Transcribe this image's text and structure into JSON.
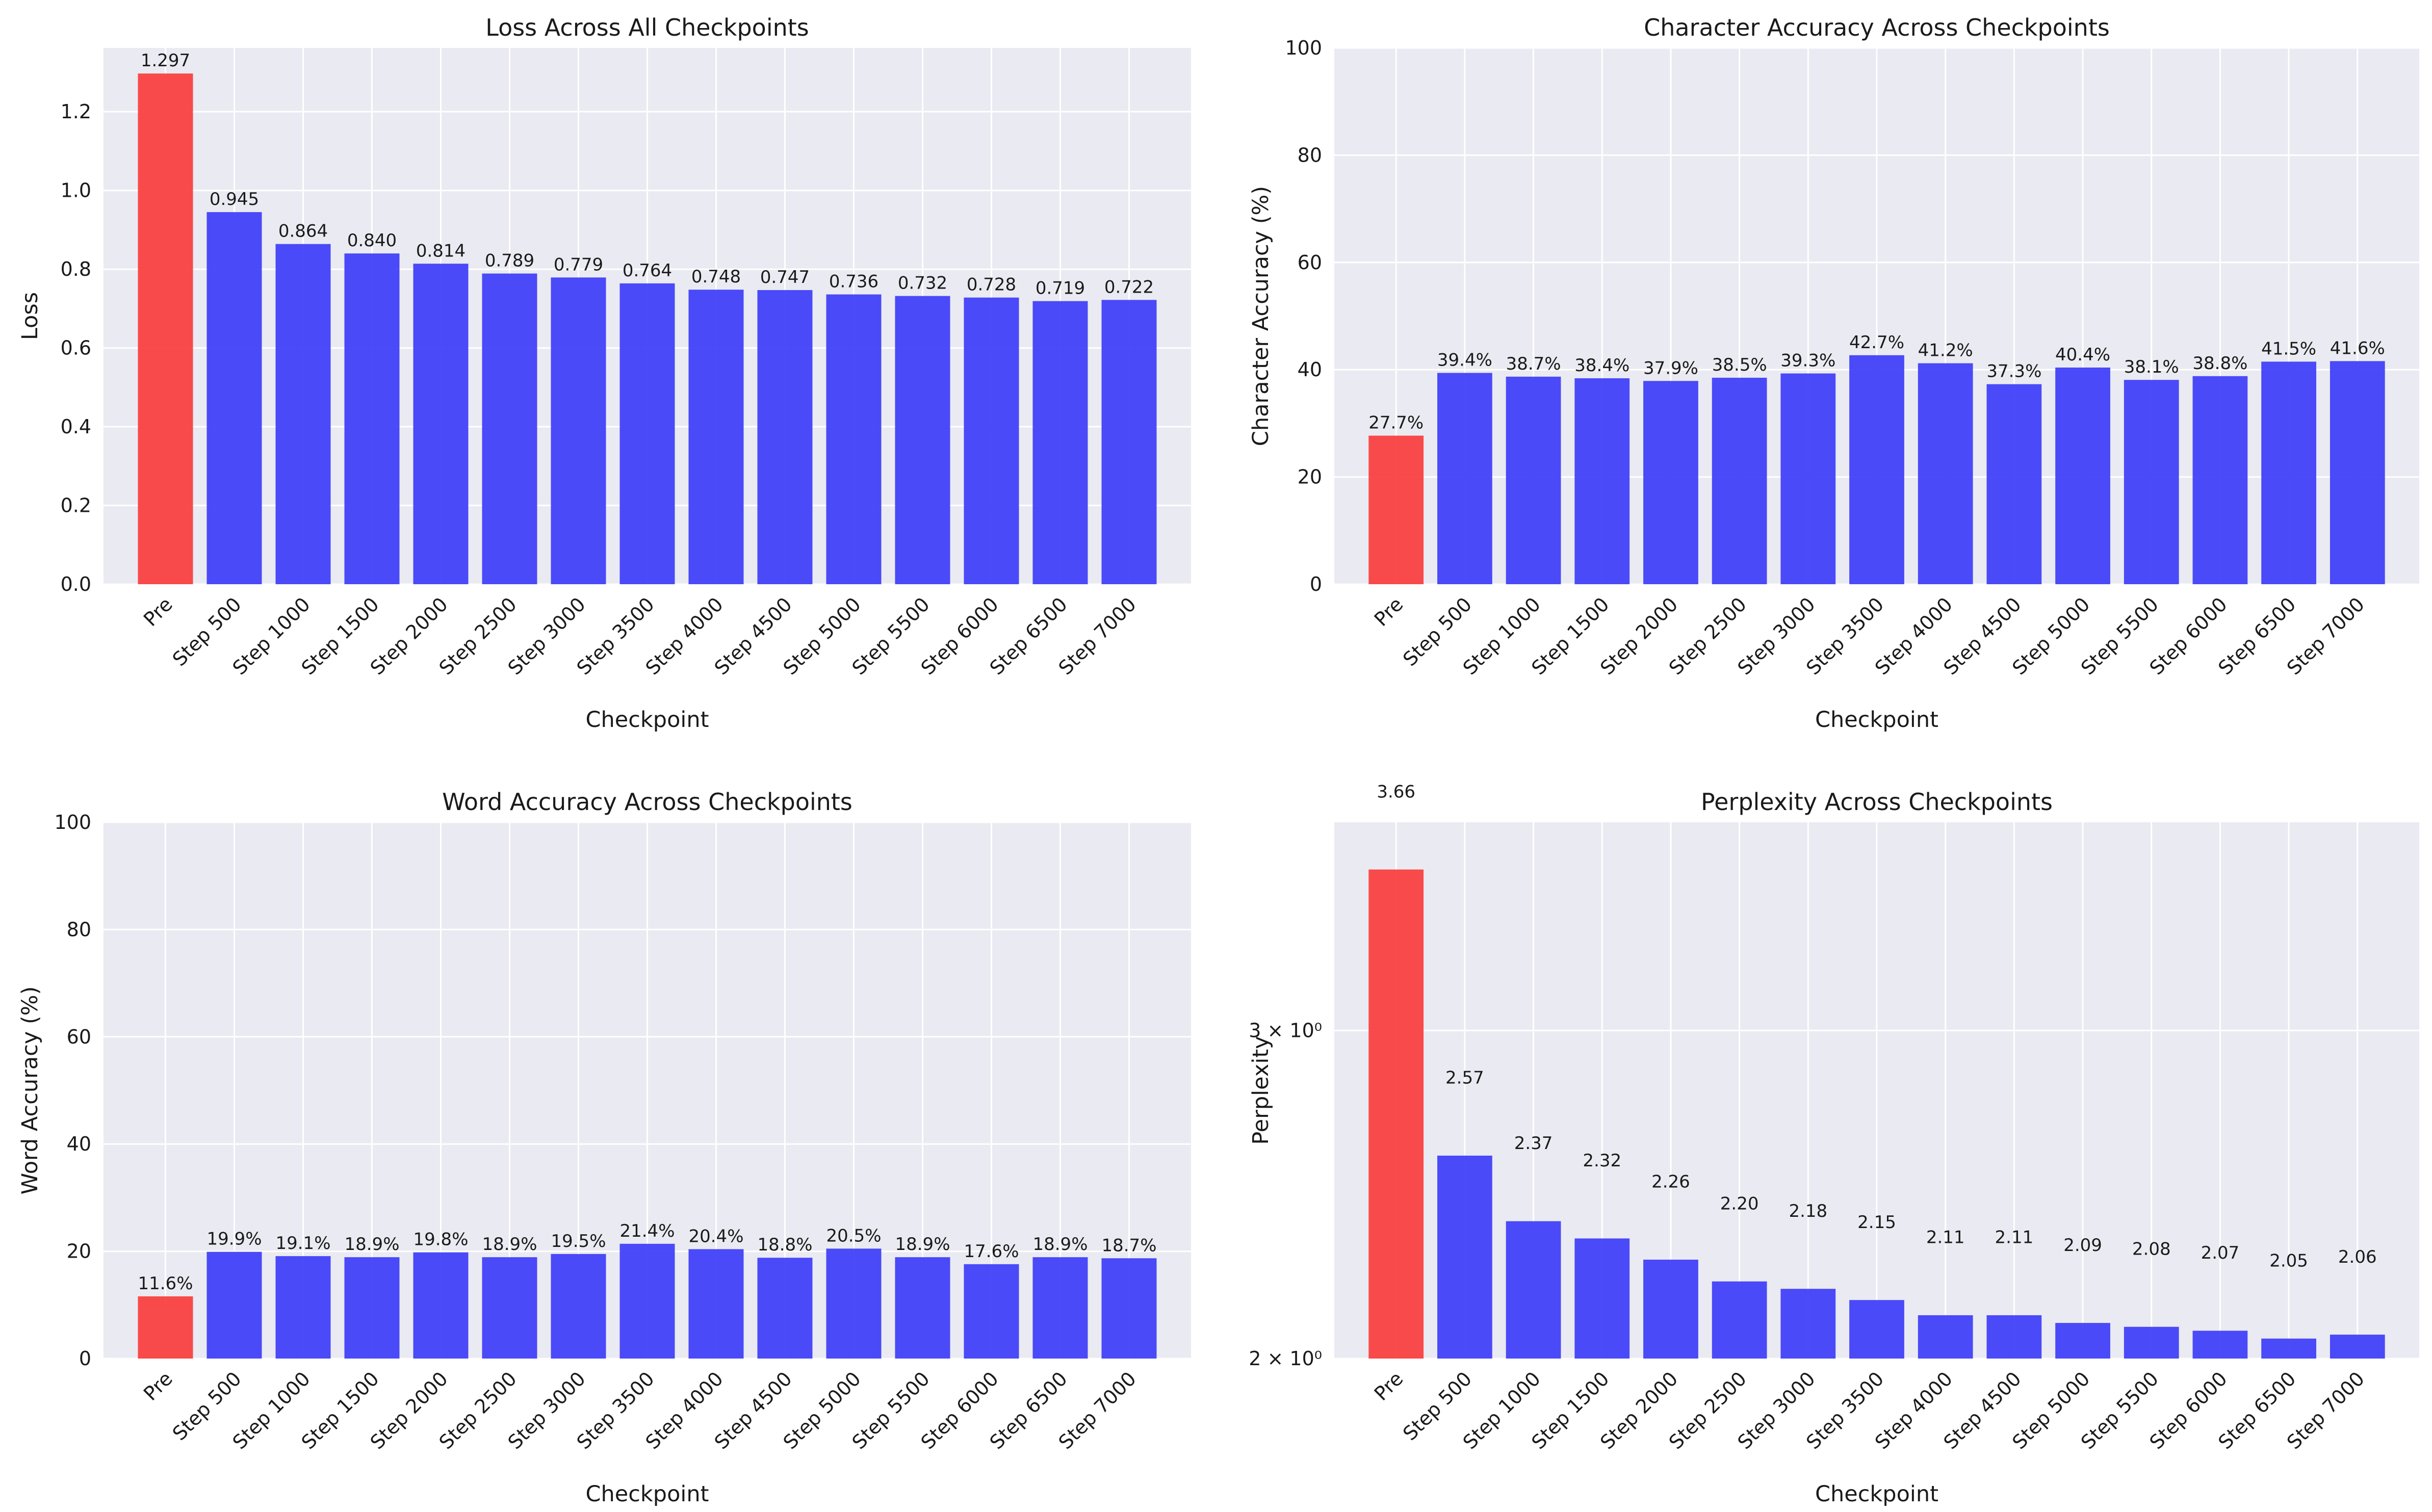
{
  "colors": {
    "pre": "#f83c3c",
    "step": "#3c3cf8",
    "axes_bg": "#eaeaf2",
    "grid": "#ffffff"
  },
  "chart_data": [
    {
      "type": "bar",
      "title": "Loss Across All Checkpoints",
      "xlabel": "Checkpoint",
      "ylabel": "Loss",
      "categories": [
        "Pre",
        "Step 500",
        "Step 1000",
        "Step 1500",
        "Step 2000",
        "Step 2500",
        "Step 3000",
        "Step 3500",
        "Step 4000",
        "Step 4500",
        "Step 5000",
        "Step 5500",
        "Step 6000",
        "Step 6500",
        "Step 7000"
      ],
      "values": [
        1.297,
        0.945,
        0.864,
        0.84,
        0.814,
        0.789,
        0.779,
        0.764,
        0.748,
        0.747,
        0.736,
        0.732,
        0.728,
        0.719,
        0.722
      ],
      "value_labels": [
        "1.297",
        "0.945",
        "0.864",
        "0.840",
        "0.814",
        "0.789",
        "0.779",
        "0.764",
        "0.748",
        "0.747",
        "0.736",
        "0.732",
        "0.728",
        "0.719",
        "0.722"
      ],
      "scale": "linear",
      "ylim": [
        0,
        1.362
      ],
      "yticks": [
        0,
        0.2,
        0.4,
        0.6,
        0.8,
        1.0,
        1.2
      ],
      "ytick_labels": [
        "0.0",
        "0.2",
        "0.4",
        "0.6",
        "0.8",
        "1.0",
        "1.2"
      ],
      "grid": true
    },
    {
      "type": "bar",
      "title": "Character Accuracy Across Checkpoints",
      "xlabel": "Checkpoint",
      "ylabel": "Character Accuracy (%)",
      "categories": [
        "Pre",
        "Step 500",
        "Step 1000",
        "Step 1500",
        "Step 2000",
        "Step 2500",
        "Step 3000",
        "Step 3500",
        "Step 4000",
        "Step 4500",
        "Step 5000",
        "Step 5500",
        "Step 6000",
        "Step 6500",
        "Step 7000"
      ],
      "values": [
        27.7,
        39.4,
        38.7,
        38.4,
        37.9,
        38.5,
        39.3,
        42.7,
        41.2,
        37.3,
        40.4,
        38.1,
        38.8,
        41.5,
        41.6
      ],
      "value_labels": [
        "27.7%",
        "39.4%",
        "38.7%",
        "38.4%",
        "37.9%",
        "38.5%",
        "39.3%",
        "42.7%",
        "41.2%",
        "37.3%",
        "40.4%",
        "38.1%",
        "38.8%",
        "41.5%",
        "41.6%"
      ],
      "scale": "linear",
      "ylim": [
        0,
        100
      ],
      "yticks": [
        0,
        20,
        40,
        60,
        80,
        100
      ],
      "ytick_labels": [
        "0",
        "20",
        "40",
        "60",
        "80",
        "100"
      ],
      "grid": true
    },
    {
      "type": "bar",
      "title": "Word Accuracy Across Checkpoints",
      "xlabel": "Checkpoint",
      "ylabel": "Word Accuracy (%)",
      "categories": [
        "Pre",
        "Step 500",
        "Step 1000",
        "Step 1500",
        "Step 2000",
        "Step 2500",
        "Step 3000",
        "Step 3500",
        "Step 4000",
        "Step 4500",
        "Step 5000",
        "Step 5500",
        "Step 6000",
        "Step 6500",
        "Step 7000"
      ],
      "values": [
        11.6,
        19.9,
        19.1,
        18.9,
        19.8,
        18.9,
        19.5,
        21.4,
        20.4,
        18.8,
        20.5,
        18.9,
        17.6,
        18.9,
        18.7
      ],
      "value_labels": [
        "11.6%",
        "19.9%",
        "19.1%",
        "18.9%",
        "19.8%",
        "18.9%",
        "19.5%",
        "21.4%",
        "20.4%",
        "18.8%",
        "20.5%",
        "18.9%",
        "17.6%",
        "18.9%",
        "18.7%"
      ],
      "scale": "linear",
      "ylim": [
        0,
        100
      ],
      "yticks": [
        0,
        20,
        40,
        60,
        80,
        100
      ],
      "ytick_labels": [
        "0",
        "20",
        "40",
        "60",
        "80",
        "100"
      ],
      "grid": true
    },
    {
      "type": "bar",
      "title": "Perplexity Across Checkpoints",
      "xlabel": "Checkpoint",
      "ylabel": "Perplexity",
      "categories": [
        "Pre",
        "Step 500",
        "Step 1000",
        "Step 1500",
        "Step 2000",
        "Step 2500",
        "Step 3000",
        "Step 3500",
        "Step 4000",
        "Step 4500",
        "Step 5000",
        "Step 5500",
        "Step 6000",
        "Step 6500",
        "Step 7000"
      ],
      "values": [
        3.66,
        2.57,
        2.37,
        2.32,
        2.26,
        2.2,
        2.18,
        2.15,
        2.11,
        2.11,
        2.09,
        2.08,
        2.07,
        2.05,
        2.06
      ],
      "value_labels": [
        "3.66",
        "2.57",
        "2.37",
        "2.32",
        "2.26",
        "2.20",
        "2.18",
        "2.15",
        "2.11",
        "2.11",
        "2.09",
        "2.08",
        "2.07",
        "2.05",
        "2.06"
      ],
      "scale": "log",
      "ylim": [
        2.0,
        3.88
      ],
      "yticks": [
        2,
        3
      ],
      "ytick_labels": [
        "2 × 10⁰",
        "3 × 10⁰"
      ],
      "label_offset_factor": 1.1,
      "grid": true
    }
  ]
}
